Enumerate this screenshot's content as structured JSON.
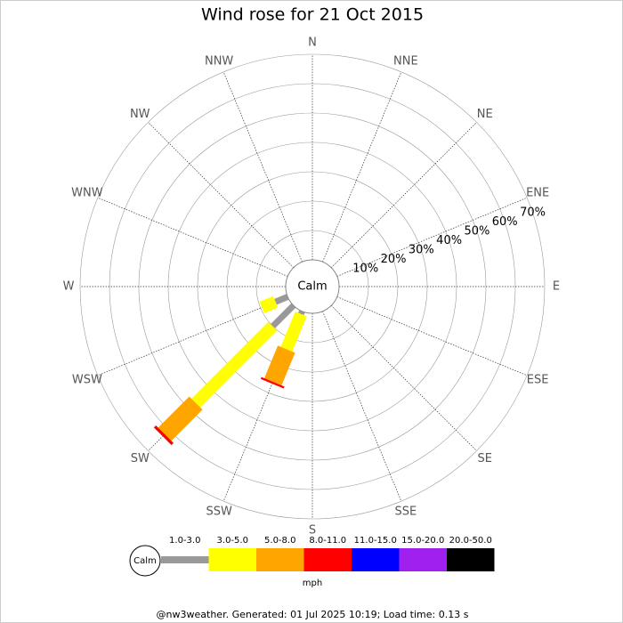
{
  "chart_data": {
    "type": "windrose",
    "title": "Wind rose for 21 Oct 2015",
    "calm_label": "Calm",
    "unit": "mph",
    "footer": "@nw3weather. Generated: 01 Jul 2025 10:19; Load time: 0.13 s",
    "categories": [
      "N",
      "NNE",
      "NE",
      "ENE",
      "E",
      "ESE",
      "SE",
      "SSE",
      "S",
      "SSW",
      "SW",
      "WSW",
      "W",
      "WNW",
      "NW",
      "NNW"
    ],
    "rlim": [
      0,
      70
    ],
    "rticks": [
      {
        "value": 10,
        "label": "10%"
      },
      {
        "value": 20,
        "label": "20%"
      },
      {
        "value": 30,
        "label": "30%"
      },
      {
        "value": 40,
        "label": "40%"
      },
      {
        "value": 50,
        "label": "50%"
      },
      {
        "value": 60,
        "label": "60%"
      },
      {
        "value": 70,
        "label": "70%"
      }
    ],
    "series": [
      {
        "name": "1.0-3.0",
        "color": "#999999",
        "values": [
          0,
          0,
          0,
          0,
          0,
          0,
          0,
          0,
          0,
          1,
          10,
          4.5,
          0,
          0,
          0,
          0
        ]
      },
      {
        "name": "3.0-5.0",
        "color": "#ffff00",
        "values": [
          0,
          0,
          0,
          0,
          0,
          0,
          0,
          0,
          0,
          13,
          37,
          5,
          0,
          0,
          0,
          0
        ]
      },
      {
        "name": "5.0-8.0",
        "color": "#ffa500",
        "values": [
          0,
          0,
          0,
          0,
          0,
          0,
          0,
          0,
          0,
          12,
          15,
          0,
          0,
          0,
          0,
          0
        ]
      },
      {
        "name": "8.0-11.0",
        "color": "#ff0000",
        "values": [
          0,
          0,
          0,
          0,
          0,
          0,
          0,
          0,
          0,
          0.7,
          1,
          0,
          0,
          0,
          0,
          0
        ]
      },
      {
        "name": "11.0-15.0",
        "color": "#0000ff",
        "values": [
          0,
          0,
          0,
          0,
          0,
          0,
          0,
          0,
          0,
          0,
          0,
          0,
          0,
          0,
          0,
          0
        ]
      },
      {
        "name": "15.0-20.0",
        "color": "#a020f0",
        "values": [
          0,
          0,
          0,
          0,
          0,
          0,
          0,
          0,
          0,
          0,
          0,
          0,
          0,
          0,
          0,
          0
        ]
      },
      {
        "name": "20.0-50.0",
        "color": "#000000",
        "values": [
          0,
          0,
          0,
          0,
          0,
          0,
          0,
          0,
          0,
          0,
          0,
          0,
          0,
          0,
          0,
          0
        ]
      }
    ]
  }
}
